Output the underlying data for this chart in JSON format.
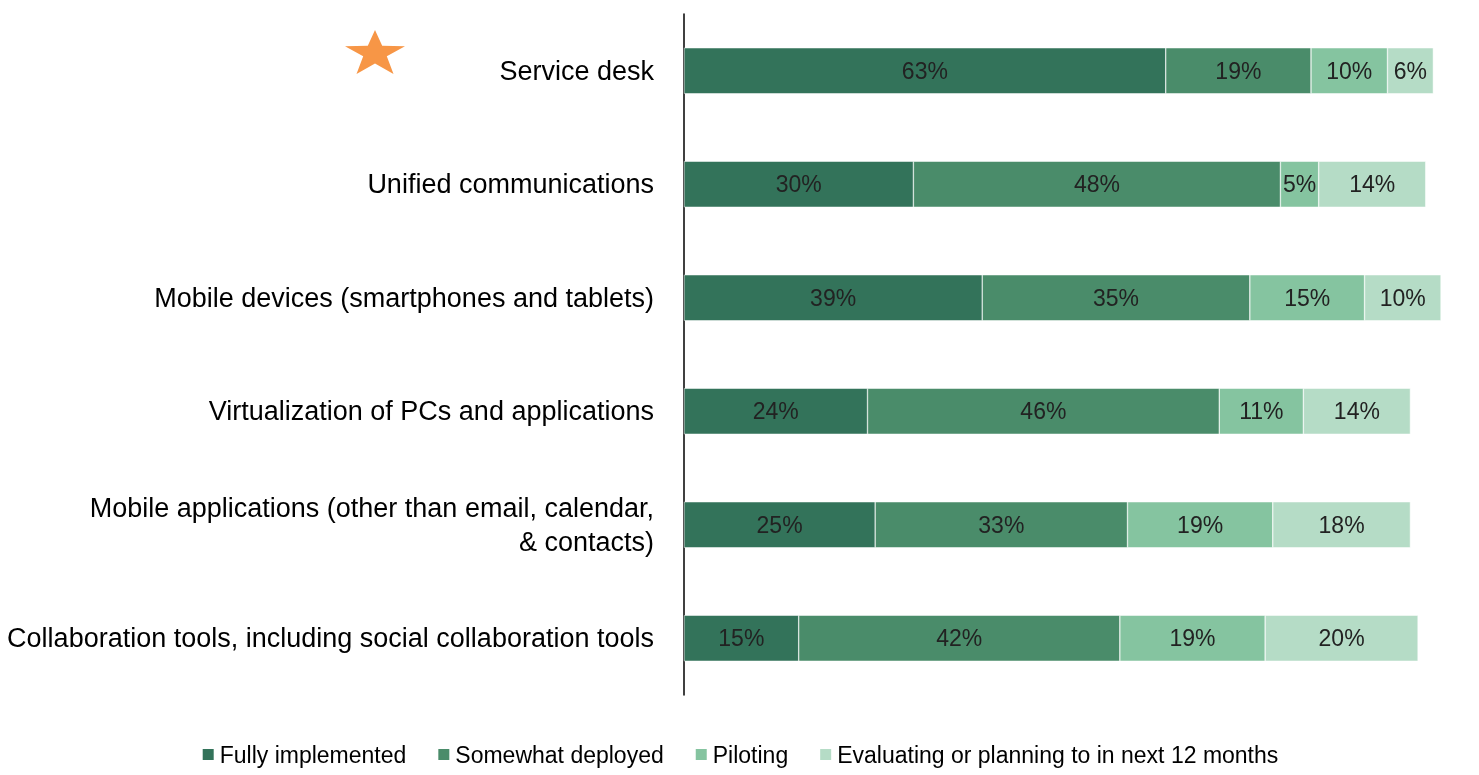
{
  "chart_data": {
    "type": "bar",
    "orientation": "horizontal",
    "stacked": true,
    "legend": "bottom",
    "categories": [
      "Service desk",
      "Unified communications",
      "Mobile devices (smartphones and tablets)",
      "Virtualization of PCs and applications",
      "Mobile applications (other than email, calendar, & contacts)",
      "Collaboration tools, including social collaboration tools"
    ],
    "series": [
      {
        "name": "Fully implemented",
        "color": "#33735a",
        "values": [
          63,
          30,
          39,
          24,
          25,
          15
        ],
        "value_labels": [
          "63%",
          "30%",
          "39%",
          "24%",
          "25%",
          "15%"
        ]
      },
      {
        "name": "Somewhat deployed",
        "color": "#4a8c6a",
        "values": [
          19,
          48,
          35,
          46,
          33,
          42
        ],
        "value_labels": [
          "19%",
          "48%",
          "35%",
          "46%",
          "33%",
          "42%"
        ]
      },
      {
        "name": "Piloting",
        "color": "#85c4a0",
        "values": [
          10,
          5,
          15,
          11,
          19,
          19
        ],
        "value_labels": [
          "10%",
          "5%",
          "15%",
          "11%",
          "19%",
          "19%"
        ]
      },
      {
        "name": "Evaluating or planning to in next 12 months",
        "color": "#b5dcc6",
        "values": [
          6,
          14,
          10,
          14,
          18,
          20
        ],
        "value_labels": [
          "6%",
          "14%",
          "10%",
          "14%",
          "18%",
          "20%"
        ]
      }
    ]
  }
}
